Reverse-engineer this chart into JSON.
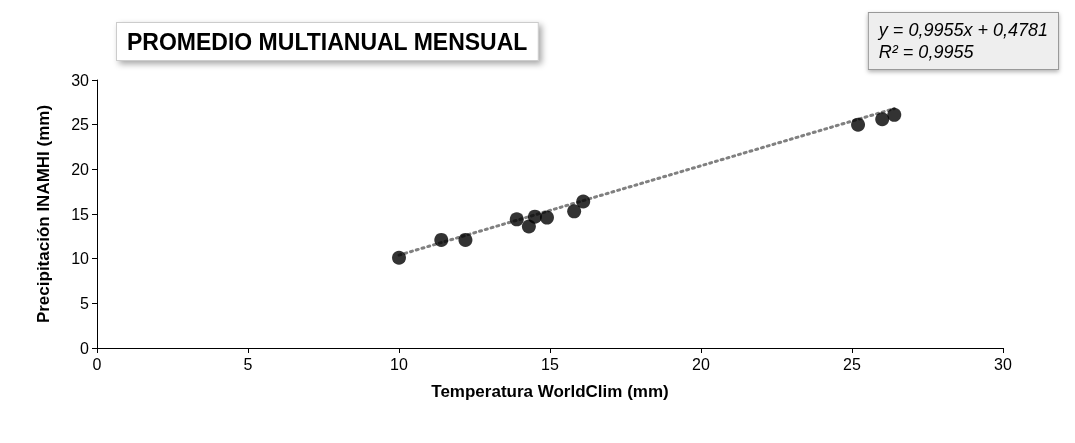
{
  "chart_data": {
    "type": "scatter",
    "title": "PROMEDIO MULTIANUAL MENSUAL",
    "xlabel": "Temperatura WorldClim (mm)",
    "ylabel": "Precipitación INAMHI (mm)",
    "annotations": [
      "y = 0,9955x + 0,4781\nR² = 0,9955"
    ],
    "xlim": [
      0,
      30
    ],
    "xticks": [
      0,
      5,
      10,
      15,
      20,
      25,
      30
    ],
    "ylim": [
      0,
      30
    ],
    "yticks": [
      0,
      5,
      10,
      15,
      20,
      25,
      30
    ],
    "grid": false,
    "marker": "circle",
    "series": [
      {
        "color": "#000000",
        "x": [
          10.0,
          11.4,
          12.2,
          13.9,
          14.3,
          14.5,
          14.9,
          15.8,
          16.1,
          25.2,
          26.0,
          26.4
        ],
        "values": [
          10.1,
          12.1,
          12.1,
          14.4,
          13.6,
          14.7,
          14.6,
          15.3,
          16.4,
          25.0,
          25.6,
          26.1
        ]
      },
      {
        "type": "line",
        "color": "#808080",
        "line_style": "dotted",
        "marker": "none",
        "x": [
          10.0,
          26.4
        ],
        "values": [
          10.4,
          26.8
        ]
      }
    ]
  }
}
